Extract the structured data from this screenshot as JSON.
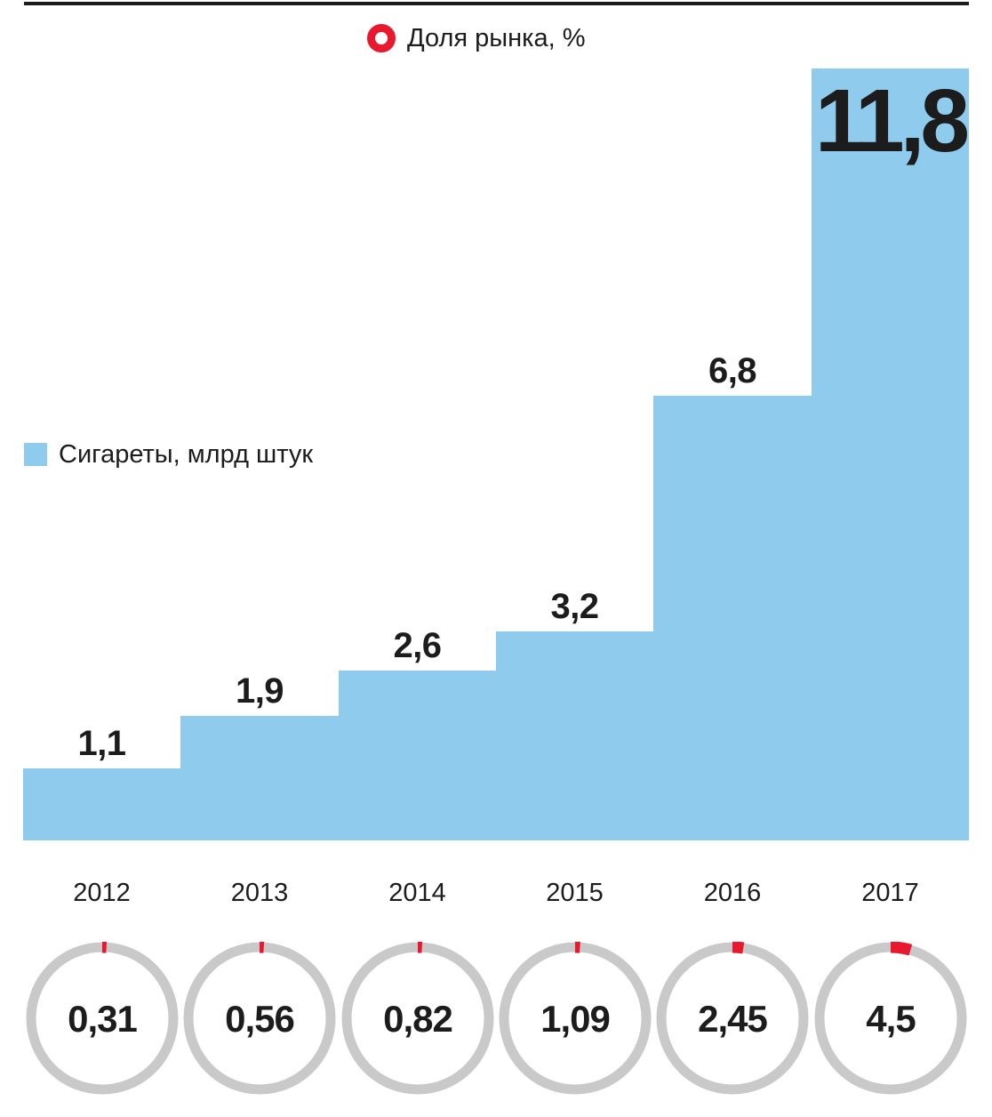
{
  "legend": {
    "bars_label": "Сигареты, млрд штук",
    "share_label": "Доля рынка, %"
  },
  "colors": {
    "bar_blue": "#8ecbec",
    "ring_gray": "#c9c9c9",
    "accent_red": "#e8192f",
    "ink": "#1c1c1c"
  },
  "chart_data": {
    "type": "bar",
    "title": "",
    "categories": [
      "2012",
      "2013",
      "2014",
      "2015",
      "2016",
      "2017"
    ],
    "series": [
      {
        "name": "Сигареты, млрд штук",
        "type": "bar",
        "unit": "млрд штук",
        "values": [
          1.1,
          1.9,
          2.6,
          3.2,
          6.8,
          11.8
        ],
        "labels": [
          "1,1",
          "1,9",
          "2,6",
          "3,2",
          "6,8",
          "11,8"
        ],
        "label_placement": [
          "above",
          "above",
          "above",
          "above",
          "above",
          "inside"
        ]
      },
      {
        "name": "Доля рынка, %",
        "type": "donut",
        "unit": "%",
        "values": [
          0.31,
          0.56,
          0.82,
          1.09,
          2.45,
          4.5
        ],
        "labels": [
          "0,31",
          "0,56",
          "0,82",
          "1,09",
          "2,45",
          "4,5"
        ]
      }
    ],
    "ylim": [
      0,
      11.8
    ],
    "xlabel": "",
    "ylabel": "",
    "grid": false,
    "legend_position": "top"
  }
}
